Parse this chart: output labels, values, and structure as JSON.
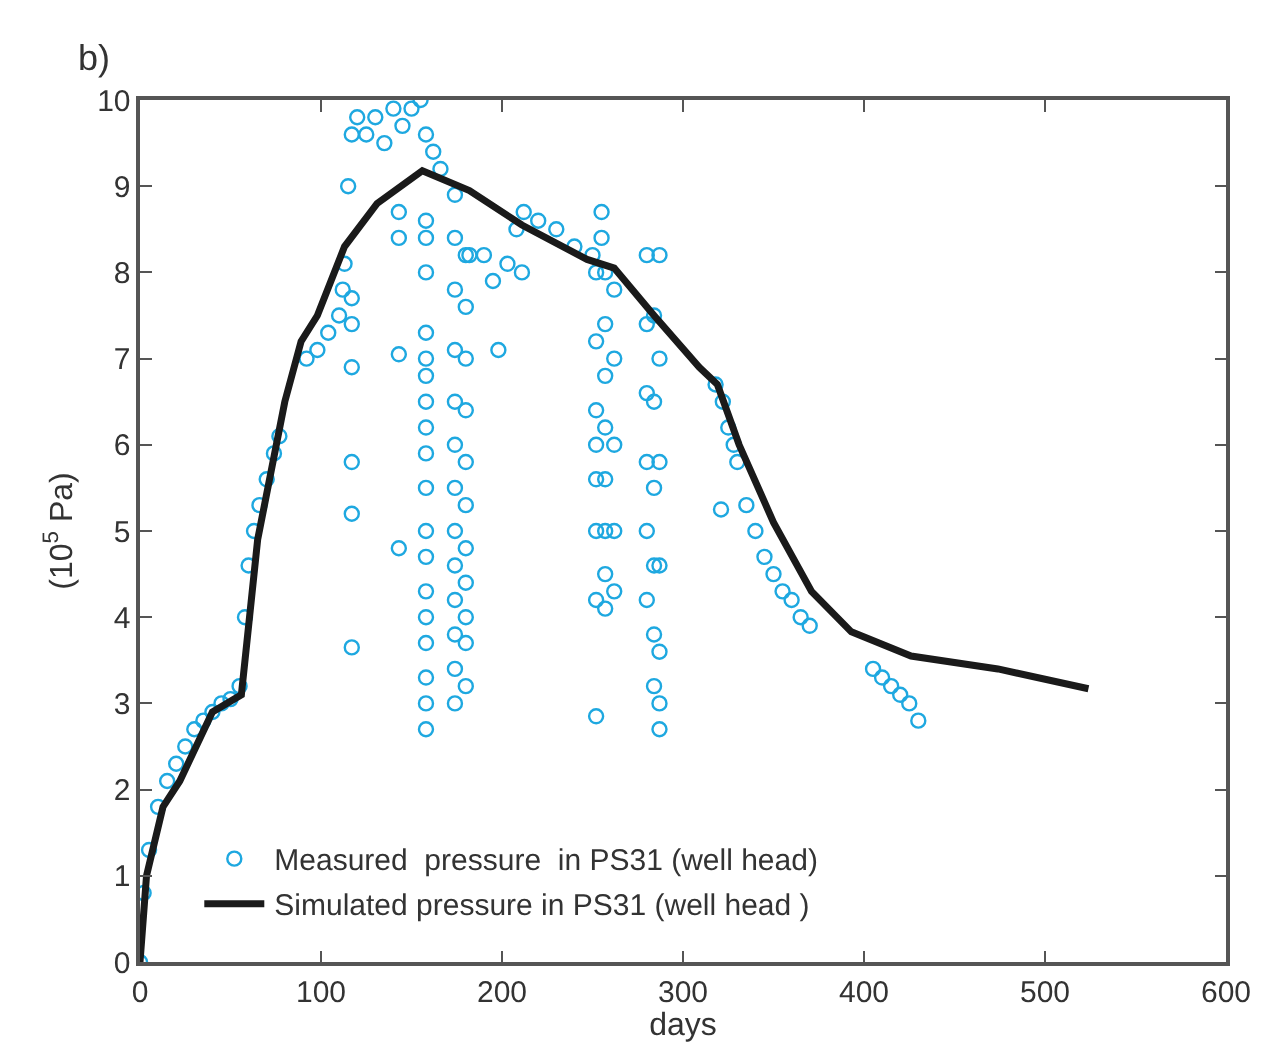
{
  "chart_data": {
    "type": "scatter",
    "xlabel": "days",
    "ylabel": "(10$^{5}$ Pa)",
    "annotations": [
      "b)"
    ],
    "xlim": [
      0,
      600
    ],
    "xticks": [
      0,
      100,
      200,
      300,
      400,
      500,
      600
    ],
    "ylim": [
      0,
      10
    ],
    "yticks": [
      0,
      1,
      2,
      3,
      4,
      5,
      6,
      7,
      8,
      9,
      10
    ],
    "legend": "bottom",
    "marker": "circle",
    "series": [
      {
        "name": "Measured  pressure  in PS31 (well head)",
        "color": "#1ea8e0",
        "x": [
          0,
          2,
          5,
          10,
          15,
          20,
          25,
          30,
          35,
          40,
          45,
          50,
          55,
          58,
          60,
          63,
          66,
          70,
          74,
          77,
          92,
          98,
          104,
          110,
          112,
          113,
          117,
          117,
          117,
          117,
          117,
          117,
          115,
          117,
          120,
          125,
          130,
          135,
          140,
          145,
          150,
          155,
          158,
          162,
          166,
          143,
          143,
          143,
          143,
          158,
          158,
          158,
          158,
          158,
          158,
          158,
          158,
          158,
          158,
          158,
          158,
          158,
          158,
          158,
          158,
          158,
          158,
          174,
          174,
          174,
          174,
          174,
          174,
          174,
          174,
          174,
          174,
          174,
          174,
          174,
          180,
          180,
          180,
          180,
          180,
          180,
          180,
          180,
          180,
          180,
          180,
          182,
          190,
          195,
          198,
          203,
          208,
          212,
          220,
          230,
          240,
          250,
          211,
          252,
          252,
          252,
          252,
          252,
          252,
          252,
          252,
          255,
          255,
          257,
          257,
          257,
          257,
          257,
          257,
          257,
          257,
          262,
          262,
          262,
          262,
          262,
          280,
          280,
          280,
          280,
          280,
          280,
          284,
          284,
          284,
          284,
          284,
          284,
          287,
          287,
          287,
          287,
          287,
          287,
          287,
          318,
          322,
          325,
          328,
          330,
          321,
          335,
          340,
          345,
          350,
          355,
          360,
          365,
          370,
          405,
          410,
          415,
          420,
          425,
          430
        ],
        "values": [
          0,
          0.8,
          1.3,
          1.8,
          2.1,
          2.3,
          2.5,
          2.7,
          2.8,
          2.9,
          3.0,
          3.05,
          3.2,
          4.0,
          4.6,
          5.0,
          5.3,
          5.6,
          5.9,
          6.1,
          7.0,
          7.1,
          7.3,
          7.5,
          7.8,
          8.1,
          6.9,
          5.8,
          5.2,
          3.65,
          7.4,
          7.7,
          9.0,
          9.6,
          9.8,
          9.6,
          9.8,
          9.5,
          9.9,
          9.7,
          9.9,
          10.0,
          9.6,
          9.4,
          9.2,
          8.4,
          8.7,
          7.05,
          4.8,
          8.6,
          8.4,
          8.0,
          7.3,
          7.0,
          6.8,
          6.5,
          6.2,
          5.9,
          5.5,
          5.0,
          4.7,
          4.3,
          4.0,
          3.7,
          3.3,
          3.0,
          2.7,
          8.9,
          8.4,
          7.8,
          7.1,
          6.5,
          6.0,
          5.5,
          5.0,
          4.6,
          4.2,
          3.8,
          3.4,
          3.0,
          8.2,
          7.6,
          7.0,
          6.4,
          5.8,
          5.3,
          4.8,
          4.4,
          4.0,
          3.7,
          3.2,
          8.2,
          8.2,
          7.9,
          7.1,
          8.1,
          8.5,
          8.7,
          8.6,
          8.5,
          8.3,
          8.2,
          8.0,
          8.0,
          7.2,
          6.4,
          5.6,
          5.0,
          4.2,
          2.85,
          6.0,
          8.7,
          8.4,
          8.0,
          7.4,
          6.8,
          6.2,
          5.6,
          5.0,
          4.5,
          4.1,
          7.8,
          7.0,
          6.0,
          5.0,
          4.3,
          8.2,
          7.4,
          6.6,
          5.8,
          5.0,
          4.2,
          7.5,
          6.5,
          5.5,
          4.6,
          3.8,
          3.2,
          8.2,
          7.0,
          5.8,
          4.6,
          3.6,
          3.0,
          2.7,
          6.7,
          6.5,
          6.2,
          6.0,
          5.8,
          5.25,
          5.3,
          5.0,
          4.7,
          4.5,
          4.3,
          4.2,
          4.0,
          3.9,
          3.4,
          3.3,
          3.2,
          3.1,
          3.0,
          2.8
        ]
      },
      {
        "name": "Simulated pressure in PS31 (well head )",
        "type": "line",
        "color": "#1a1a1a",
        "marker": "none",
        "line_style": "solid",
        "x": [
          0,
          3.6,
          12.7,
          22,
          40,
          56,
          65,
          80,
          89,
          98,
          113,
          131,
          156,
          182,
          211,
          247,
          262,
          284,
          309,
          319,
          331,
          350,
          371,
          393,
          426,
          474,
          524
        ],
        "values": [
          0,
          1.0,
          1.8,
          2.1,
          2.9,
          3.1,
          4.9,
          6.5,
          7.2,
          7.5,
          8.3,
          8.8,
          9.18,
          8.95,
          8.55,
          8.15,
          8.05,
          7.5,
          6.9,
          6.7,
          6.0,
          5.1,
          4.3,
          3.83,
          3.55,
          3.4,
          3.17
        ]
      }
    ]
  }
}
